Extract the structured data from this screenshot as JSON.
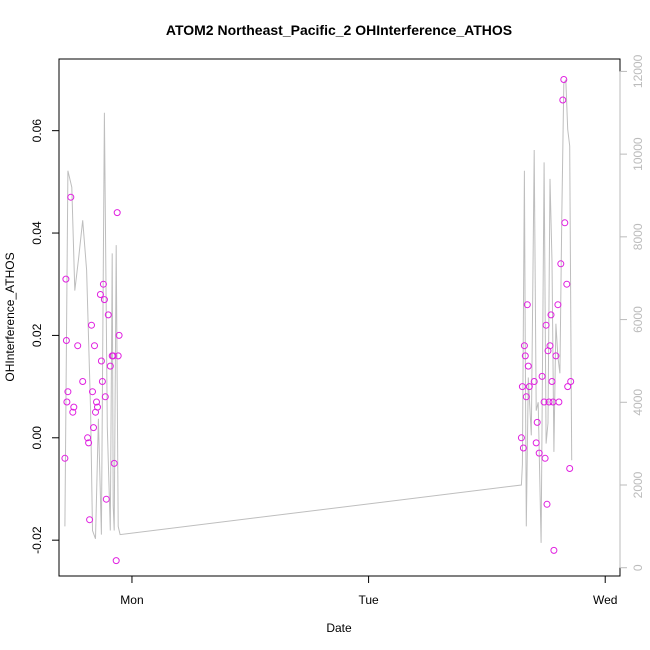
{
  "chart_data": {
    "type": "scatter",
    "title": "ATOM2 Northeast_Pacific_2 OHInterference_ATHOS",
    "xlabel": "Date",
    "ylabel": "OHInterference_ATHOS",
    "x_ticks": [
      "Mon",
      "Tue",
      "Wed"
    ],
    "x_tick_values": [
      24,
      48,
      72
    ],
    "xlim": [
      16.6,
      73.5
    ],
    "ylim": [
      -0.027,
      0.074
    ],
    "y_ticks": [
      "-0.02",
      "0.00",
      "0.02",
      "0.04",
      "0.06"
    ],
    "y_tick_values": [
      -0.02,
      0.0,
      0.02,
      0.04,
      0.06
    ],
    "y2lim": [
      -200,
      12300
    ],
    "y2_ticks": [
      "0",
      "2000",
      "4000",
      "6000",
      "8000",
      "10000",
      "12000"
    ],
    "y2_tick_values": [
      0,
      2000,
      4000,
      6000,
      8000,
      10000,
      12000
    ],
    "grid": false,
    "legend": "none",
    "colors": {
      "points": "#e020e0",
      "secondary_line": "#bebebe",
      "axis": "#000000",
      "right_axis": "#bbbbbb"
    },
    "series": [
      {
        "kind": "points",
        "x": [
          17.2,
          17.3,
          17.35,
          17.4,
          17.5,
          17.8,
          18.0,
          18.1,
          18.5,
          19.0,
          19.5,
          19.6,
          19.7,
          19.9,
          20.0,
          20.1,
          20.2,
          20.3,
          20.4,
          20.5,
          20.8,
          20.9,
          21.0,
          21.1,
          21.2,
          21.3,
          21.4,
          21.6,
          21.8,
          22.0,
          22.1,
          22.2,
          22.4,
          22.5,
          22.6,
          22.7
        ],
        "y": [
          -0.004,
          0.031,
          0.019,
          0.007,
          0.009,
          0.047,
          0.005,
          0.006,
          0.018,
          0.011,
          0.0,
          -0.001,
          -0.016,
          0.022,
          0.009,
          0.002,
          0.018,
          0.005,
          0.007,
          0.006,
          0.028,
          0.015,
          0.011,
          0.03,
          0.027,
          0.008,
          -0.012,
          0.024,
          0.014,
          0.016,
          0.016,
          -0.005,
          -0.024,
          0.044,
          0.016,
          0.02
        ],
        "x2": [
          63.5,
          63.6,
          63.7,
          63.8,
          63.9,
          64.0,
          64.1,
          64.2,
          64.3,
          64.8,
          65.0,
          65.1,
          65.3,
          65.6,
          65.8,
          65.9,
          66.0,
          66.1,
          66.2,
          66.3,
          66.4,
          66.5,
          66.6,
          66.7,
          66.8,
          67.0,
          67.2,
          67.3,
          67.5,
          67.7,
          67.8,
          67.9,
          68.1,
          68.2,
          68.4,
          68.5
        ],
        "y2": [
          0.0,
          0.01,
          -0.002,
          0.018,
          0.016,
          0.008,
          0.026,
          0.014,
          0.01,
          0.011,
          -0.001,
          0.003,
          -0.003,
          0.012,
          0.007,
          -0.004,
          0.022,
          -0.013,
          0.017,
          0.007,
          0.018,
          0.024,
          0.011,
          0.007,
          -0.022,
          0.016,
          0.026,
          0.007,
          0.034,
          0.066,
          0.07,
          0.042,
          0.03,
          0.01,
          -0.006,
          0.011
        ]
      },
      {
        "kind": "line",
        "axis": "right",
        "x": [
          17.2,
          17.5,
          17.9,
          18.2,
          18.6,
          19.0,
          19.4,
          19.8,
          20.0,
          20.3,
          20.6,
          20.9,
          21.2,
          21.5,
          21.8,
          22.0,
          22.1,
          22.2,
          22.4,
          22.6,
          22.8,
          63.5,
          63.6,
          63.8,
          63.9,
          64.0,
          64.2,
          64.5,
          64.8,
          65.0,
          65.2,
          65.5,
          65.8,
          66.0,
          66.2,
          66.4,
          66.6,
          66.8,
          67.0,
          67.2,
          67.4,
          67.6,
          67.8,
          68.0,
          68.2,
          68.4,
          68.6
        ],
        "y": [
          1000,
          9600,
          9200,
          6700,
          7500,
          8400,
          7200,
          3800,
          900,
          700,
          3600,
          800,
          11000,
          3400,
          900,
          7600,
          1500,
          900,
          7800,
          1000,
          800,
          2000,
          2500,
          9600,
          5200,
          1000,
          4600,
          3200,
          10100,
          3800,
          4000,
          600,
          9800,
          3000,
          3500,
          9400,
          7400,
          2800,
          5900,
          5100,
          4700,
          8500,
          11700,
          11800,
          10600,
          10200,
          2600
        ]
      }
    ]
  }
}
